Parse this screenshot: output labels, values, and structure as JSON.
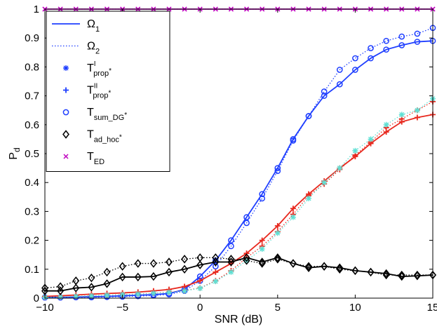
{
  "chart_data": {
    "type": "line",
    "title": "",
    "xlabel": "SNR (dB)",
    "ylabel": "P",
    "ylabel_sub": "d",
    "xlim": [
      -10,
      15
    ],
    "ylim": [
      0,
      1
    ],
    "xticks": [
      -10,
      -5,
      0,
      5,
      10,
      15
    ],
    "yticks": [
      0,
      0.1,
      0.2,
      0.3,
      0.4,
      0.5,
      0.6,
      0.7,
      0.8,
      0.9,
      1
    ],
    "grid": false,
    "legend_position": "top-left",
    "x": [
      -10,
      -9,
      -8,
      -7,
      -6,
      -5,
      -4,
      -3,
      -2,
      -1,
      0,
      1,
      2,
      3,
      4,
      5,
      6,
      7,
      8,
      9,
      10,
      11,
      12,
      13,
      14,
      15
    ],
    "series": [
      {
        "name": "T_ED Ω1",
        "color": "#bf00bf",
        "line": "solid",
        "marker": "x",
        "values": [
          1,
          1,
          1,
          1,
          1,
          1,
          1,
          1,
          1,
          1,
          1,
          1,
          1,
          1,
          1,
          1,
          1,
          1,
          1,
          1,
          1,
          1,
          1,
          1,
          1,
          1
        ]
      },
      {
        "name": "T_ED Ω2",
        "color": "#bf00bf",
        "line": "dotted",
        "marker": "x",
        "values": [
          1,
          1,
          1,
          1,
          1,
          1,
          1,
          1,
          1,
          1,
          1,
          1,
          1,
          1,
          1,
          1,
          1,
          1,
          1,
          1,
          1,
          1,
          1,
          1,
          1,
          1
        ]
      },
      {
        "name": "T_sum_DG Ω1",
        "color": "#1f3fff",
        "line": "solid",
        "marker": "o",
        "values": [
          0.003,
          0.003,
          0.004,
          0.005,
          0.006,
          0.008,
          0.01,
          0.012,
          0.016,
          0.03,
          0.075,
          0.13,
          0.2,
          0.28,
          0.36,
          0.45,
          0.55,
          0.63,
          0.7,
          0.74,
          0.79,
          0.83,
          0.86,
          0.875,
          0.887,
          0.89
        ]
      },
      {
        "name": "T_sum_DG Ω2",
        "color": "#1f3fff",
        "line": "dotted",
        "marker": "o",
        "values": [
          0.002,
          0.002,
          0.003,
          0.003,
          0.004,
          0.005,
          0.007,
          0.009,
          0.013,
          0.025,
          0.06,
          0.11,
          0.18,
          0.26,
          0.345,
          0.44,
          0.545,
          0.63,
          0.715,
          0.79,
          0.83,
          0.865,
          0.89,
          0.905,
          0.915,
          0.935
        ]
      },
      {
        "name": "T_prop Ω1",
        "color": "#e8281e",
        "line": "solid",
        "marker": "+",
        "values": [
          0.006,
          0.008,
          0.011,
          0.014,
          0.016,
          0.018,
          0.021,
          0.025,
          0.03,
          0.04,
          0.06,
          0.09,
          0.12,
          0.155,
          0.2,
          0.25,
          0.31,
          0.36,
          0.405,
          0.45,
          0.49,
          0.535,
          0.575,
          0.61,
          0.625,
          0.635
        ]
      },
      {
        "name": "T_prop Ω2",
        "color": "#e8281e",
        "line": "dotted",
        "marker": "+",
        "values": [
          0.003,
          0.004,
          0.006,
          0.008,
          0.01,
          0.012,
          0.014,
          0.017,
          0.021,
          0.026,
          0.035,
          0.06,
          0.095,
          0.14,
          0.18,
          0.23,
          0.29,
          0.355,
          0.395,
          0.445,
          0.495,
          0.54,
          0.59,
          0.62,
          0.65,
          0.68
        ]
      },
      {
        "name": "T_prop' Ω2",
        "color": "#5fe0d4",
        "line": "dotted",
        "marker": "*",
        "values": [
          0.003,
          0.004,
          0.006,
          0.008,
          0.01,
          0.012,
          0.014,
          0.017,
          0.02,
          0.025,
          0.034,
          0.058,
          0.09,
          0.13,
          0.17,
          0.225,
          0.28,
          0.345,
          0.4,
          0.45,
          0.51,
          0.55,
          0.6,
          0.635,
          0.65,
          0.69
        ]
      },
      {
        "name": "T_ad_hoc Ω1",
        "color": "#000000",
        "line": "solid",
        "marker": "diamond",
        "values": [
          0.025,
          0.025,
          0.035,
          0.038,
          0.05,
          0.073,
          0.073,
          0.075,
          0.09,
          0.1,
          0.115,
          0.125,
          0.125,
          0.14,
          0.125,
          0.14,
          0.12,
          0.105,
          0.11,
          0.105,
          0.095,
          0.09,
          0.085,
          0.075,
          0.077,
          0.08
        ]
      },
      {
        "name": "T_ad_hoc Ω2",
        "color": "#000000",
        "line": "dotted",
        "marker": "diamond",
        "values": [
          0.035,
          0.04,
          0.06,
          0.07,
          0.09,
          0.11,
          0.12,
          0.12,
          0.125,
          0.135,
          0.14,
          0.14,
          0.135,
          0.13,
          0.12,
          0.135,
          0.12,
          0.11,
          0.11,
          0.1,
          0.095,
          0.09,
          0.08,
          0.08,
          0.08,
          0.08
        ]
      }
    ],
    "legend": [
      {
        "label": "Ω",
        "sub": "1",
        "sup": "",
        "star": "",
        "marker": "line-solid",
        "color": "#1f3fff"
      },
      {
        "label": "Ω",
        "sub": "2",
        "sup": "",
        "star": "",
        "marker": "line-dotted",
        "color": "#1f3fff"
      },
      {
        "label": "T",
        "sub": "prop",
        "sup": "I",
        "star": "*",
        "marker": "asterisk",
        "color": "#1f3fff"
      },
      {
        "label": "T",
        "sub": "prop",
        "sup": "II",
        "star": "*",
        "marker": "plus",
        "color": "#1f3fff"
      },
      {
        "label": "T",
        "sub": "sum_DG",
        "sup": "",
        "star": "*",
        "marker": "circle",
        "color": "#1f3fff"
      },
      {
        "label": "T",
        "sub": "ad_hoc",
        "sup": "",
        "star": "*",
        "marker": "diamond",
        "color": "#000000"
      },
      {
        "label": "T",
        "sub": "ED",
        "sup": "",
        "star": "",
        "marker": "x",
        "color": "#bf00bf"
      }
    ]
  }
}
